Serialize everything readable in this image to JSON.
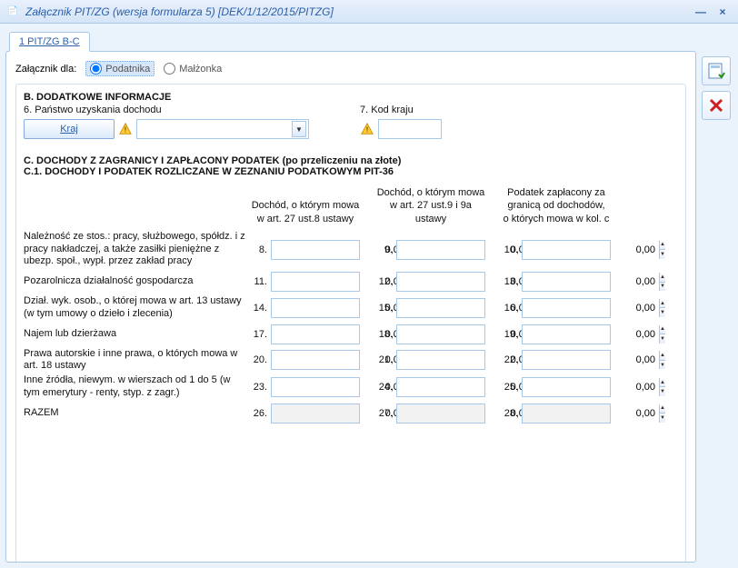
{
  "window": {
    "title": "Załącznik PIT/ZG (wersja formularza 5) [DEK/1/12/2015/PITZG]",
    "icon_text": "PIT/ZG"
  },
  "tab": {
    "label": "1 PIT/ZG B-C"
  },
  "attach": {
    "label": "Załącznik dla:",
    "opt1": "Podatnika",
    "opt2": "Małżonka"
  },
  "secB": {
    "title": "B. DODATKOWE INFORMACJE",
    "q6": "6. Państwo uzyskania dochodu",
    "kraj_btn": "Kraj",
    "q7": "7. Kod kraju"
  },
  "secC": {
    "title1": "C. DOCHODY Z ZAGRANICY I ZAPŁACONY PODATEK (po przeliczeniu na złote)",
    "title2": "C.1. DOCHODY I PODATEK ROZLICZANE W ZEZNANIU PODATKOWYM PIT-36",
    "col1": "Dochód, o którym mowa\nw art. 27 ust.8 ustawy",
    "col2": "Dochód, o którym mowa\nw art. 27 ust.9 i 9a ustawy",
    "col3": "Podatek zapłacony za\ngranicą od dochodów,\no których mowa w kol. c",
    "rows": [
      {
        "label": "Należność ze stos.: pracy, służbowego, spółdz. i z pracy nakładczej, a także zasiłki pieniężne z ubezp. społ., wypł. przez zakład pracy",
        "n": [
          "8.",
          "9.",
          "10."
        ],
        "v": [
          "0,00",
          "0,00",
          "0,00"
        ]
      },
      {
        "label": "Pozarolnicza działalność gospodarcza",
        "n": [
          "11.",
          "12.",
          "13."
        ],
        "v": [
          "0,00",
          "0,00",
          "0,00"
        ]
      },
      {
        "label": "Dział. wyk. osob., o której mowa w art. 13 ustawy (w tym umowy o dzieło i zlecenia)",
        "n": [
          "14.",
          "15.",
          "16."
        ],
        "v": [
          "0,00",
          "0,00",
          "0,00"
        ]
      },
      {
        "label": "Najem lub dzierżawa",
        "n": [
          "17.",
          "18.",
          "19."
        ],
        "v": [
          "0,00",
          "0,00",
          "0,00"
        ]
      },
      {
        "label": "Prawa autorskie i inne prawa, o których mowa w art. 18 ustawy",
        "n": [
          "20.",
          "21.",
          "22."
        ],
        "v": [
          "0,00",
          "0,00",
          "0,00"
        ]
      },
      {
        "label": "Inne źródła, niewym. w wierszach od 1 do 5 (w tym emerytury - renty, styp. z zagr.)",
        "n": [
          "23.",
          "24.",
          "25."
        ],
        "v": [
          "0,00",
          "0,00",
          "0,00"
        ]
      },
      {
        "label": "RAZEM",
        "n": [
          "26.",
          "27.",
          "28."
        ],
        "v": [
          "0,00",
          "0,00",
          "0,00"
        ],
        "readonly": true
      }
    ]
  },
  "colors": {
    "accent": "#2b5fa8",
    "border": "#a8c8e8",
    "bg": "#eaf2fb"
  }
}
